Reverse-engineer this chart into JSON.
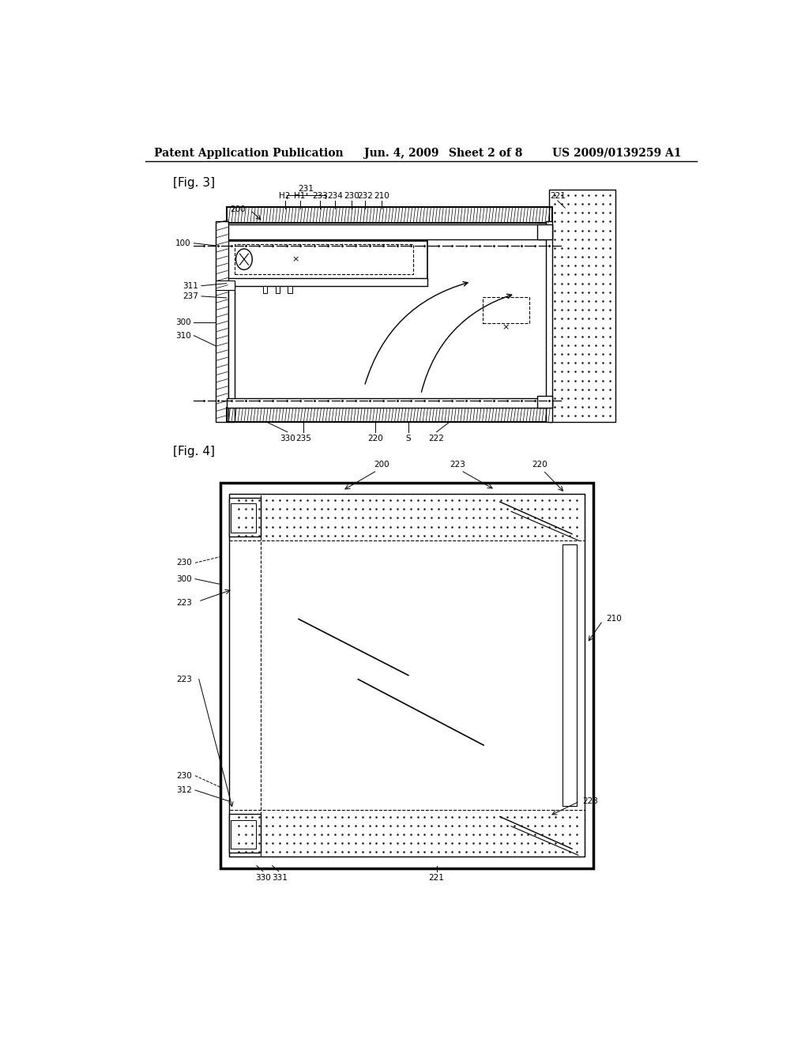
{
  "background_color": "#ffffff",
  "header_text": "Patent Application Publication",
  "header_date": "Jun. 4, 2009",
  "header_sheet": "Sheet 2 of 8",
  "header_patent": "US 2009/0139259 A1",
  "fig3_label": "[Fig. 3]",
  "fig4_label": "[Fig. 4]"
}
